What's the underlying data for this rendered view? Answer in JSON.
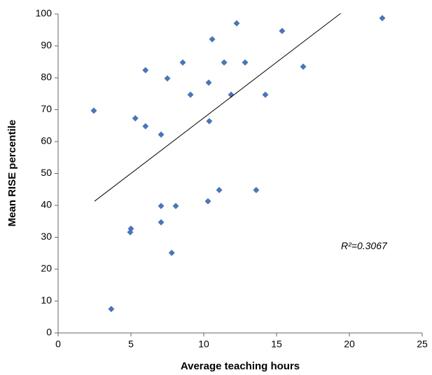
{
  "chart_data": {
    "type": "scatter",
    "x_label": "Average teaching hours",
    "y_label": "Mean RISE percentile",
    "annotation": "R²=0.3067",
    "xlim": [
      0,
      25
    ],
    "xticks": [
      0,
      5,
      10,
      15,
      20,
      25
    ],
    "ylim": [
      0,
      100
    ],
    "yticks": [
      0,
      10,
      20,
      30,
      40,
      50,
      60,
      70,
      80,
      90,
      100
    ],
    "color": "#4a76b5",
    "x": [
      2.45,
      3.65,
      4.95,
      5.0,
      5.3,
      6.0,
      6.0,
      7.07,
      7.07,
      7.07,
      7.5,
      7.8,
      8.08,
      8.56,
      9.09,
      10.29,
      10.34,
      10.38,
      10.58,
      11.06,
      11.4,
      11.88,
      12.26,
      12.84,
      13.6,
      14.23,
      15.38,
      16.83,
      22.26
    ],
    "values": [
      69.7,
      7.5,
      31.6,
      32.7,
      67.3,
      82.4,
      64.8,
      62.2,
      39.8,
      34.7,
      79.8,
      25.1,
      39.8,
      84.8,
      74.7,
      41.3,
      78.5,
      66.4,
      92.1,
      44.8,
      84.8,
      74.7,
      97.1,
      84.8,
      44.8,
      74.7,
      94.7,
      83.5,
      98.7
    ],
    "trendline": {
      "x": [
        2.5,
        19.4
      ],
      "y": [
        41.3,
        100.2
      ]
    }
  }
}
